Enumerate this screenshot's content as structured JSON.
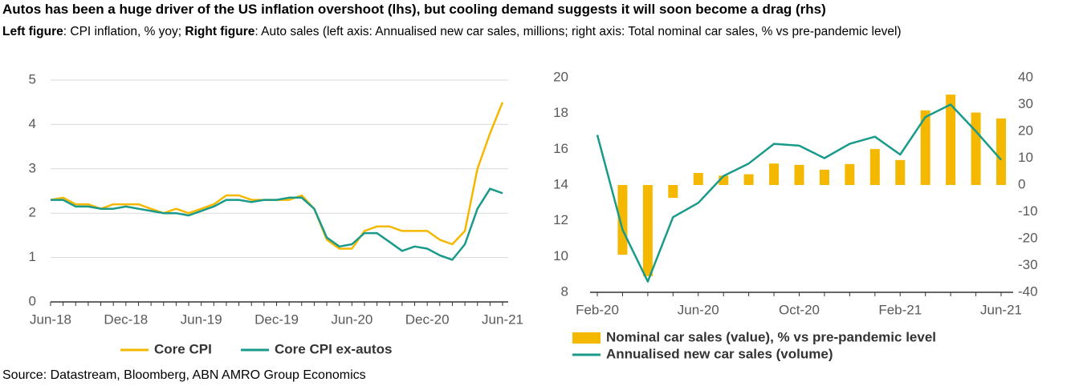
{
  "title": "Autos has been a huge driver of the US inflation overshoot (lhs), but cooling demand suggests it will soon become a drag (rhs)",
  "subtitle": [
    "Left figure",
    ": CPI inflation, % yoy; ",
    "Right figure",
    ": Auto sales (left axis: Annualised new car sales, millions; right axis: Total nominal car sales, % vs pre-pandemic level)"
  ],
  "source": "Source: Datastream, Bloomberg, ABN AMRO Group Economics",
  "chart_data": [
    {
      "type": "line",
      "categories": [
        "Jun-18",
        null,
        null,
        null,
        null,
        null,
        "Dec-18",
        null,
        null,
        null,
        null,
        null,
        "Jun-19",
        null,
        null,
        null,
        null,
        null,
        "Dec-19",
        null,
        null,
        null,
        null,
        null,
        "Jun-20",
        null,
        null,
        null,
        null,
        null,
        "Dec-20",
        null,
        null,
        null,
        null,
        null,
        "Jun-21"
      ],
      "series": [
        {
          "name": "Core CPI",
          "color": "#f5b800",
          "values": [
            2.3,
            2.35,
            2.2,
            2.2,
            2.1,
            2.2,
            2.2,
            2.2,
            2.1,
            2.0,
            2.1,
            2.0,
            2.1,
            2.2,
            2.4,
            2.4,
            2.3,
            2.3,
            2.3,
            2.3,
            2.4,
            2.1,
            1.4,
            1.2,
            1.2,
            1.6,
            1.7,
            1.7,
            1.6,
            1.6,
            1.6,
            1.4,
            1.3,
            1.6,
            3.0,
            3.8,
            4.5
          ]
        },
        {
          "name": "Core CPI ex-autos",
          "color": "#1a9a8a",
          "values": [
            2.3,
            2.3,
            2.15,
            2.15,
            2.1,
            2.1,
            2.15,
            2.1,
            2.05,
            2.0,
            2.0,
            1.95,
            2.05,
            2.15,
            2.3,
            2.3,
            2.25,
            2.3,
            2.3,
            2.35,
            2.35,
            2.1,
            1.45,
            1.25,
            1.3,
            1.55,
            1.55,
            1.35,
            1.15,
            1.25,
            1.2,
            1.05,
            0.95,
            1.3,
            2.1,
            2.55,
            2.45
          ]
        }
      ],
      "ylim": [
        0,
        5
      ],
      "yticks": [
        0,
        1,
        2,
        3,
        4,
        5
      ],
      "grid": true,
      "legend": "bottom"
    },
    {
      "type": "combo",
      "categories": [
        "Feb-20",
        null,
        null,
        null,
        "Jun-20",
        null,
        null,
        null,
        "Oct-20",
        null,
        null,
        null,
        "Feb-21",
        null,
        null,
        null,
        "Jun-21"
      ],
      "series": [
        {
          "name": "Nominal car sales (value), % vs pre-pandemic level",
          "type": "bar",
          "axis": "y2",
          "color": "#f5b800",
          "values": [
            null,
            -26,
            -34,
            -4.8,
            4.5,
            3.5,
            4,
            8,
            7.5,
            5.7,
            7.8,
            13.4,
            9.3,
            27.8,
            33.7,
            27,
            24.8
          ]
        },
        {
          "name": "Annualised new car sales (volume)",
          "type": "line",
          "color": "#1a9a8a",
          "values": [
            16.8,
            11.5,
            8.6,
            12.2,
            13.0,
            14.5,
            15.2,
            16.3,
            16.2,
            15.5,
            16.3,
            16.7,
            15.7,
            17.8,
            18.5,
            17.0,
            15.4
          ]
        }
      ],
      "ylim": [
        8,
        20
      ],
      "yticks": [
        8,
        10,
        12,
        14,
        16,
        18,
        20
      ],
      "y2lim": [
        -40,
        40
      ],
      "y2ticks": [
        -40,
        -30,
        -20,
        -10,
        0,
        10,
        20,
        30,
        40
      ],
      "grid": false,
      "legend": "bottom"
    }
  ]
}
